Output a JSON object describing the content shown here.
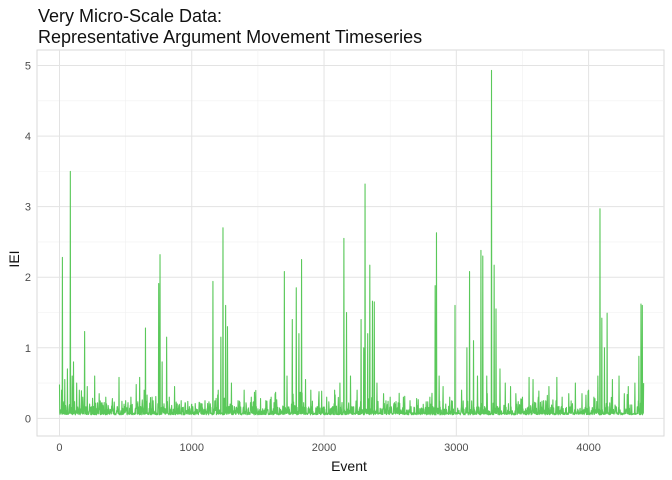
{
  "chart_data": {
    "type": "line",
    "title": "Very Micro-Scale Data:",
    "subtitle": "Representative Argument Movement Timeseries",
    "xlabel": "Event",
    "ylabel": "IEI",
    "xlim": [
      -170,
      4570
    ],
    "ylim": [
      -0.25,
      5.22
    ],
    "x_ticks": [
      0,
      1000,
      2000,
      3000,
      4000
    ],
    "y_ticks": [
      0,
      1,
      2,
      3,
      4,
      5
    ],
    "grid": true,
    "series_color": "#5ac85a",
    "n_events": 4416,
    "baseline": 0.05,
    "peaks": [
      [
        0,
        0.48
      ],
      [
        15,
        0.4
      ],
      [
        22,
        2.28
      ],
      [
        40,
        0.55
      ],
      [
        60,
        0.7
      ],
      [
        82,
        3.5
      ],
      [
        95,
        0.6
      ],
      [
        105,
        0.8
      ],
      [
        130,
        0.5
      ],
      [
        150,
        0.4
      ],
      [
        175,
        0.3
      ],
      [
        190,
        1.23
      ],
      [
        210,
        0.45
      ],
      [
        265,
        0.6
      ],
      [
        300,
        0.35
      ],
      [
        350,
        0.3
      ],
      [
        400,
        0.28
      ],
      [
        450,
        0.58
      ],
      [
        500,
        0.25
      ],
      [
        540,
        0.3
      ],
      [
        580,
        0.48
      ],
      [
        605,
        0.58
      ],
      [
        640,
        0.4
      ],
      [
        650,
        1.28
      ],
      [
        700,
        0.3
      ],
      [
        750,
        1.91
      ],
      [
        760,
        2.32
      ],
      [
        775,
        0.8
      ],
      [
        810,
        1.15
      ],
      [
        830,
        0.3
      ],
      [
        870,
        0.45
      ],
      [
        920,
        0.25
      ],
      [
        1000,
        0.2
      ],
      [
        1060,
        0.22
      ],
      [
        1100,
        0.25
      ],
      [
        1160,
        1.94
      ],
      [
        1200,
        0.4
      ],
      [
        1220,
        1.15
      ],
      [
        1235,
        2.7
      ],
      [
        1255,
        1.6
      ],
      [
        1270,
        1.3
      ],
      [
        1300,
        0.5
      ],
      [
        1350,
        0.25
      ],
      [
        1410,
        0.22
      ],
      [
        1450,
        0.3
      ],
      [
        1520,
        0.28
      ],
      [
        1560,
        0.25
      ],
      [
        1600,
        0.3
      ],
      [
        1630,
        0.35
      ],
      [
        1700,
        2.08
      ],
      [
        1720,
        0.6
      ],
      [
        1760,
        1.4
      ],
      [
        1790,
        1.85
      ],
      [
        1810,
        1.2
      ],
      [
        1830,
        2.25
      ],
      [
        1860,
        0.55
      ],
      [
        1900,
        0.4
      ],
      [
        1960,
        0.3
      ],
      [
        2020,
        0.3
      ],
      [
        2080,
        0.4
      ],
      [
        2120,
        0.5
      ],
      [
        2150,
        2.55
      ],
      [
        2170,
        1.5
      ],
      [
        2200,
        0.6
      ],
      [
        2250,
        0.4
      ],
      [
        2280,
        1.4
      ],
      [
        2300,
        1.0
      ],
      [
        2310,
        3.32
      ],
      [
        2330,
        1.2
      ],
      [
        2345,
        2.17
      ],
      [
        2365,
        1.66
      ],
      [
        2380,
        1.65
      ],
      [
        2400,
        0.5
      ],
      [
        2450,
        0.35
      ],
      [
        2500,
        0.3
      ],
      [
        2560,
        0.22
      ],
      [
        2600,
        0.3
      ],
      [
        2650,
        0.25
      ],
      [
        2700,
        0.28
      ],
      [
        2750,
        0.2
      ],
      [
        2800,
        0.3
      ],
      [
        2840,
        1.88
      ],
      [
        2850,
        2.63
      ],
      [
        2870,
        0.6
      ],
      [
        2900,
        0.45
      ],
      [
        2950,
        0.3
      ],
      [
        2990,
        1.6
      ],
      [
        3040,
        0.4
      ],
      [
        3080,
        1.0
      ],
      [
        3100,
        2.08
      ],
      [
        3130,
        1.1
      ],
      [
        3160,
        0.6
      ],
      [
        3185,
        2.38
      ],
      [
        3200,
        2.3
      ],
      [
        3230,
        0.6
      ],
      [
        3265,
        4.93
      ],
      [
        3285,
        2.17
      ],
      [
        3300,
        1.55
      ],
      [
        3330,
        0.7
      ],
      [
        3370,
        0.5
      ],
      [
        3410,
        0.45
      ],
      [
        3450,
        0.35
      ],
      [
        3500,
        0.3
      ],
      [
        3550,
        0.58
      ],
      [
        3580,
        0.55
      ],
      [
        3620,
        0.3
      ],
      [
        3660,
        0.25
      ],
      [
        3700,
        0.45
      ],
      [
        3760,
        0.58
      ],
      [
        3800,
        0.3
      ],
      [
        3850,
        0.35
      ],
      [
        3900,
        0.5
      ],
      [
        3950,
        0.35
      ],
      [
        4000,
        0.4
      ],
      [
        4040,
        0.3
      ],
      [
        4070,
        0.6
      ],
      [
        4085,
        2.97
      ],
      [
        4100,
        1.42
      ],
      [
        4120,
        1.0
      ],
      [
        4140,
        1.49
      ],
      [
        4180,
        0.55
      ],
      [
        4230,
        0.6
      ],
      [
        4270,
        0.35
      ],
      [
        4300,
        0.45
      ],
      [
        4350,
        0.5
      ],
      [
        4380,
        0.88
      ],
      [
        4395,
        1.62
      ],
      [
        4405,
        1.6
      ],
      [
        4415,
        0.5
      ]
    ]
  }
}
